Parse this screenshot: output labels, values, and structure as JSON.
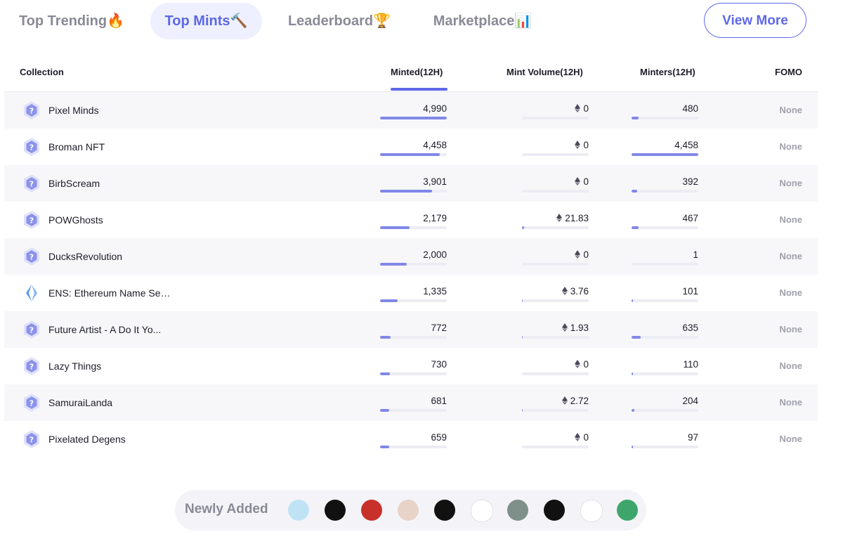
{
  "tabs": [
    {
      "label": "Top Trending",
      "emoji": "🔥"
    },
    {
      "label": "Top Mints",
      "emoji": "🔨"
    },
    {
      "label": "Leaderboard",
      "emoji": "🏆"
    },
    {
      "label": "Marketplace",
      "emoji": "📊"
    }
  ],
  "view_more_label": "View More",
  "columns": {
    "collection": "Collection",
    "minted": "Minted(12H)",
    "mint_volume": "Mint Volume(12H)",
    "minters": "Minters(12H)",
    "fomo": "FOMO"
  },
  "rows": [
    {
      "name": "Pixel Minds",
      "icon": "question-badge-icon",
      "minted": "4,990",
      "minted_fraction": 1.0,
      "volume": "0",
      "volume_fraction": 0.0,
      "minters": "480",
      "minters_fraction": 0.108,
      "fomo": "None"
    },
    {
      "name": "Broman NFT",
      "icon": "question-badge-icon",
      "minted": "4,458",
      "minted_fraction": 0.893,
      "volume": "0",
      "volume_fraction": 0.0,
      "minters": "4,458",
      "minters_fraction": 1.0,
      "fomo": "None"
    },
    {
      "name": "BirbScream",
      "icon": "question-badge-icon",
      "minted": "3,901",
      "minted_fraction": 0.782,
      "volume": "0",
      "volume_fraction": 0.0,
      "minters": "392",
      "minters_fraction": 0.088,
      "fomo": "None"
    },
    {
      "name": "POWGhosts",
      "icon": "question-badge-icon",
      "minted": "2,179",
      "minted_fraction": 0.437,
      "volume": "21.83",
      "volume_fraction": 0.03,
      "minters": "467",
      "minters_fraction": 0.105,
      "fomo": "None"
    },
    {
      "name": "DucksRevolution",
      "icon": "question-badge-icon",
      "minted": "2,000",
      "minted_fraction": 0.401,
      "volume": "0",
      "volume_fraction": 0.0,
      "minters": "1",
      "minters_fraction": 0.0,
      "fomo": "None"
    },
    {
      "name": "ENS: Ethereum Name Ser...",
      "icon": "ens-logo-icon",
      "minted": "1,335",
      "minted_fraction": 0.268,
      "volume": "3.76",
      "volume_fraction": 0.01,
      "minters": "101",
      "minters_fraction": 0.023,
      "fomo": "None"
    },
    {
      "name": "Future Artist - A Do It Yo...",
      "icon": "question-badge-icon",
      "minted": "772",
      "minted_fraction": 0.155,
      "volume": "1.93",
      "volume_fraction": 0.01,
      "minters": "635",
      "minters_fraction": 0.142,
      "fomo": "None"
    },
    {
      "name": "Lazy Things",
      "icon": "question-badge-icon",
      "minted": "730",
      "minted_fraction": 0.146,
      "volume": "0",
      "volume_fraction": 0.0,
      "minters": "110",
      "minters_fraction": 0.025,
      "fomo": "None"
    },
    {
      "name": "SamuraiLanda",
      "icon": "question-badge-icon",
      "minted": "681",
      "minted_fraction": 0.136,
      "volume": "2.72",
      "volume_fraction": 0.01,
      "minters": "204",
      "minters_fraction": 0.046,
      "fomo": "None"
    },
    {
      "name": "Pixelated Degens",
      "icon": "question-badge-icon",
      "minted": "659",
      "minted_fraction": 0.132,
      "volume": "0",
      "volume_fraction": 0.0,
      "minters": "97",
      "minters_fraction": 0.022,
      "fomo": "None"
    }
  ],
  "newly_added": {
    "label": "Newly Added",
    "items": [
      {
        "icon": "star-character-icon",
        "color": "#bfe3f5"
      },
      {
        "icon": "skull-portrait-icon",
        "color": "#111111"
      },
      {
        "icon": "red-creature-icon",
        "color": "#c8302a"
      },
      {
        "icon": "person-portrait-icon",
        "color": "#e8d3c9"
      },
      {
        "icon": "spotify-style-icon",
        "color": "#111111"
      },
      {
        "icon": "pink-art-icon",
        "color": "#ffffff"
      },
      {
        "icon": "pink-figure-icon",
        "color": "#7f8f8a"
      },
      {
        "icon": "black-badge-icon",
        "color": "#111111"
      },
      {
        "icon": "robot-face-icon",
        "color": "#ffffff"
      },
      {
        "icon": "green-circle-icon",
        "color": "#3fa66b"
      }
    ]
  },
  "colors": {
    "accent": "#5d68e8",
    "accent_soft": "#eef0ff",
    "bar_fill": "#8088e6",
    "bar_track": "#ececf3",
    "muted_text": "#8a8a96"
  }
}
